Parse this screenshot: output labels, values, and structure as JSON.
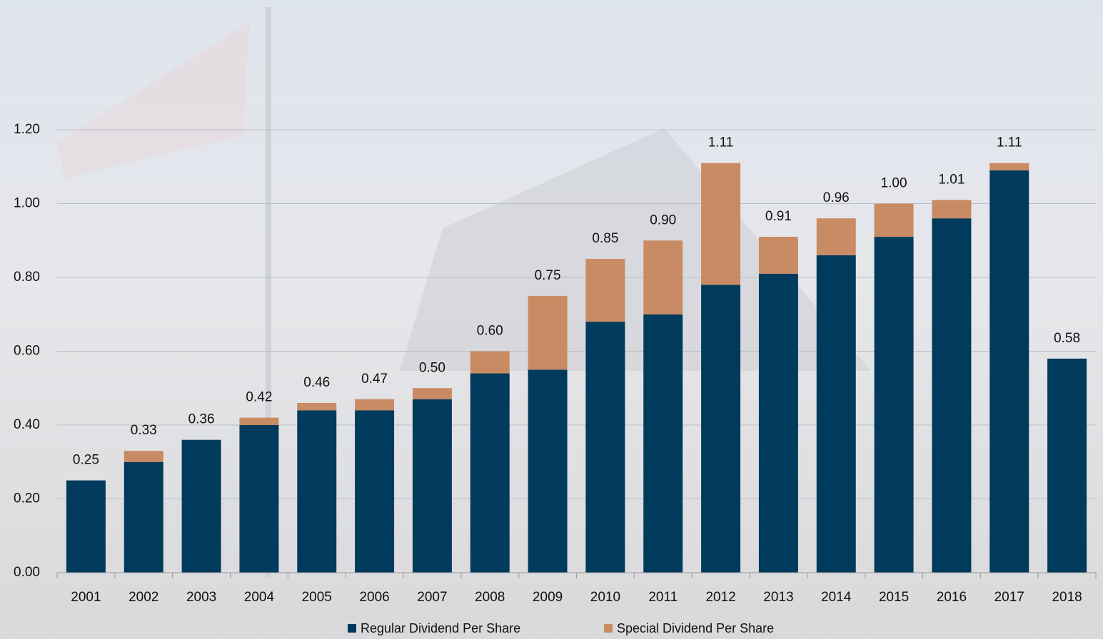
{
  "chart_data": {
    "type": "stacked_bar",
    "categories": [
      "2001",
      "2002",
      "2003",
      "2004",
      "2005",
      "2006",
      "2007",
      "2008",
      "2009",
      "2010",
      "2011",
      "2012",
      "2013",
      "2014",
      "2015",
      "2016",
      "2017",
      "2018"
    ],
    "series": [
      {
        "name": "Regular Dividend Per Share",
        "color": "#003a5c",
        "values": [
          0.25,
          0.3,
          0.36,
          0.4,
          0.44,
          0.44,
          0.47,
          0.54,
          0.55,
          0.68,
          0.7,
          0.78,
          0.81,
          0.86,
          0.91,
          0.96,
          1.09,
          0.58
        ]
      },
      {
        "name": "Special Dividend Per Share",
        "color": "#c98b63",
        "values": [
          0,
          0.03,
          0,
          0.02,
          0.02,
          0.03,
          0.03,
          0.06,
          0.2,
          0.17,
          0.2,
          0.33,
          0.1,
          0.1,
          0.09,
          0.05,
          0.02,
          0
        ]
      }
    ],
    "totals": {
      "values": [
        0.25,
        0.33,
        0.36,
        0.42,
        0.46,
        0.47,
        0.5,
        0.6,
        0.75,
        0.85,
        0.9,
        1.11,
        0.91,
        0.96,
        1.0,
        1.01,
        1.11,
        0.58
      ],
      "value_labels": [
        "0.25",
        "0.33",
        "0.36",
        "0.42",
        "0.46",
        "0.47",
        "0.50",
        "0.60",
        "0.75",
        "0.85",
        "0.90",
        "1.11",
        "0.91",
        "0.96",
        "1.00",
        "1.01",
        "1.11",
        "0.58"
      ]
    },
    "ylim": [
      0,
      1.2
    ],
    "yticks": [
      {
        "value": 0,
        "label": "0.00"
      },
      {
        "value": 0.2,
        "label": "0.20"
      },
      {
        "value": 0.4,
        "label": "0.40"
      },
      {
        "value": 0.6,
        "label": "0.60"
      },
      {
        "value": 0.8,
        "label": "0.80"
      },
      {
        "value": 1.0,
        "label": "1.00"
      },
      {
        "value": 1.2,
        "label": "1.20"
      }
    ],
    "grid": true,
    "legend": "bottom"
  }
}
